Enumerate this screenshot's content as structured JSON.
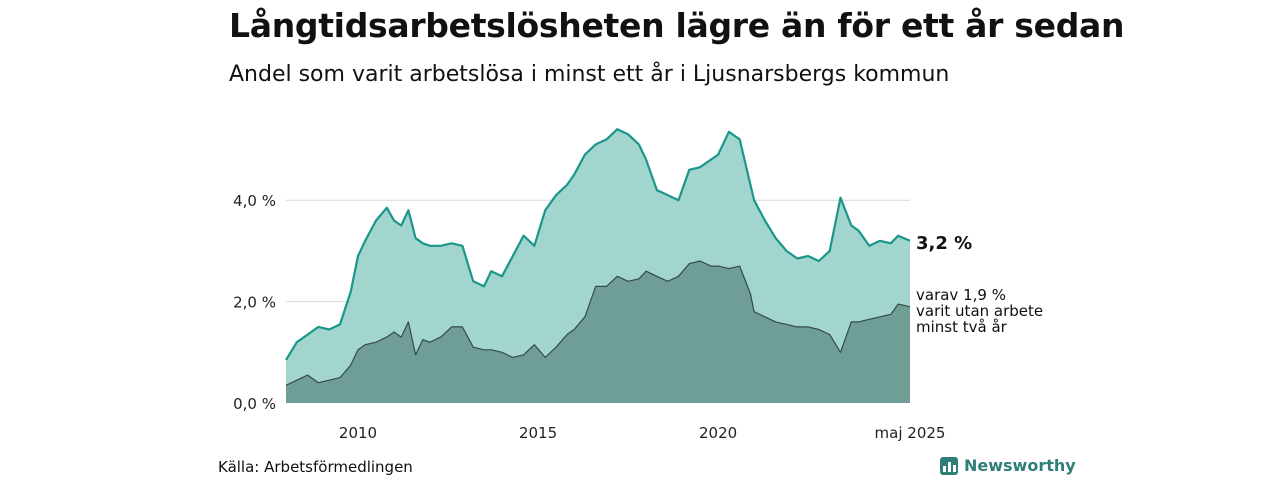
{
  "title": "Långtidsarbetslösheten lägre än för ett år sedan",
  "subtitle": "Andel som varit arbetslösa i minst ett år i Ljusnarsbergs kommun",
  "source": "Källa: Arbetsförmedlingen",
  "brand": "Newsworthy",
  "colors": {
    "total_fill": "#a3d5cf",
    "total_line": "#1a968a",
    "sub_fill": "#6f9e97",
    "sub_line": "#354b48",
    "grid": "#d9d9d9"
  },
  "chart_data": {
    "type": "area",
    "title": "Långtidsarbetslösheten lägre än för ett år sedan",
    "subtitle": "Andel som varit arbetslösa i minst ett år i Ljusnarsbergs kommun",
    "ylim": [
      0,
      5.8
    ],
    "yticks": [
      0,
      2,
      4
    ],
    "ytick_labels": [
      "0,0 %",
      "2,0 %",
      "4,0 %"
    ],
    "xticks": [
      2010,
      2015,
      2020,
      2025.33
    ],
    "xtick_labels": [
      "2010",
      "2015",
      "2020",
      "maj 2025"
    ],
    "grid": true,
    "end_labels": {
      "total": "3,2 %",
      "sub_lines": [
        "varav 1,9 %",
        "varit utan arbete",
        "minst två år"
      ]
    },
    "series": [
      {
        "key": "total",
        "x": [
          2008.0,
          2008.3,
          2008.6,
          2008.9,
          2009.2,
          2009.5,
          2009.8,
          2010.0,
          2010.2,
          2010.5,
          2010.8,
          2011.0,
          2011.2,
          2011.4,
          2011.6,
          2011.8,
          2012.0,
          2012.3,
          2012.6,
          2012.9,
          2013.2,
          2013.5,
          2013.7,
          2014.0,
          2014.3,
          2014.6,
          2014.9,
          2015.2,
          2015.5,
          2015.8,
          2016.0,
          2016.3,
          2016.6,
          2016.9,
          2017.2,
          2017.5,
          2017.8,
          2018.0,
          2018.3,
          2018.6,
          2018.9,
          2019.2,
          2019.5,
          2019.8,
          2020.0,
          2020.3,
          2020.6,
          2020.9,
          2021.0,
          2021.3,
          2021.6,
          2021.9,
          2022.2,
          2022.5,
          2022.8,
          2023.1,
          2023.4,
          2023.7,
          2023.9,
          2024.2,
          2024.5,
          2024.8,
          2025.0,
          2025.33
        ],
        "values": [
          0.85,
          1.2,
          1.35,
          1.5,
          1.45,
          1.55,
          2.2,
          2.9,
          3.2,
          3.6,
          3.85,
          3.6,
          3.5,
          3.8,
          3.25,
          3.15,
          3.1,
          3.1,
          3.15,
          3.1,
          2.4,
          2.3,
          2.6,
          2.5,
          2.9,
          3.3,
          3.1,
          3.8,
          4.1,
          4.3,
          4.5,
          4.9,
          5.1,
          5.2,
          5.4,
          5.3,
          5.1,
          4.8,
          4.2,
          4.1,
          4.0,
          4.6,
          4.65,
          4.8,
          4.9,
          5.35,
          5.2,
          4.3,
          4.0,
          3.6,
          3.25,
          3.0,
          2.85,
          2.9,
          2.8,
          3.0,
          4.05,
          3.5,
          3.4,
          3.1,
          3.2,
          3.15,
          3.3,
          3.2
        ]
      },
      {
        "key": "sub",
        "x": [
          2008.0,
          2008.3,
          2008.6,
          2008.9,
          2009.2,
          2009.5,
          2009.8,
          2010.0,
          2010.2,
          2010.5,
          2010.8,
          2011.0,
          2011.2,
          2011.4,
          2011.6,
          2011.8,
          2012.0,
          2012.3,
          2012.6,
          2012.9,
          2013.2,
          2013.5,
          2013.7,
          2014.0,
          2014.3,
          2014.6,
          2014.9,
          2015.2,
          2015.5,
          2015.8,
          2016.0,
          2016.3,
          2016.6,
          2016.9,
          2017.2,
          2017.5,
          2017.8,
          2018.0,
          2018.3,
          2018.6,
          2018.9,
          2019.2,
          2019.5,
          2019.8,
          2020.0,
          2020.3,
          2020.6,
          2020.9,
          2021.0,
          2021.3,
          2021.6,
          2021.9,
          2022.2,
          2022.5,
          2022.8,
          2023.1,
          2023.4,
          2023.7,
          2023.9,
          2024.2,
          2024.5,
          2024.8,
          2025.0,
          2025.33
        ],
        "values": [
          0.35,
          0.45,
          0.55,
          0.4,
          0.45,
          0.5,
          0.75,
          1.05,
          1.15,
          1.2,
          1.3,
          1.4,
          1.3,
          1.6,
          0.95,
          1.25,
          1.2,
          1.3,
          1.5,
          1.5,
          1.1,
          1.05,
          1.05,
          1.0,
          0.9,
          0.95,
          1.15,
          0.9,
          1.1,
          1.35,
          1.45,
          1.7,
          2.3,
          2.3,
          2.5,
          2.4,
          2.45,
          2.6,
          2.5,
          2.4,
          2.5,
          2.75,
          2.8,
          2.7,
          2.7,
          2.65,
          2.7,
          2.15,
          1.8,
          1.7,
          1.6,
          1.55,
          1.5,
          1.5,
          1.45,
          1.35,
          1.0,
          1.6,
          1.6,
          1.65,
          1.7,
          1.75,
          1.95,
          1.9
        ]
      }
    ]
  }
}
